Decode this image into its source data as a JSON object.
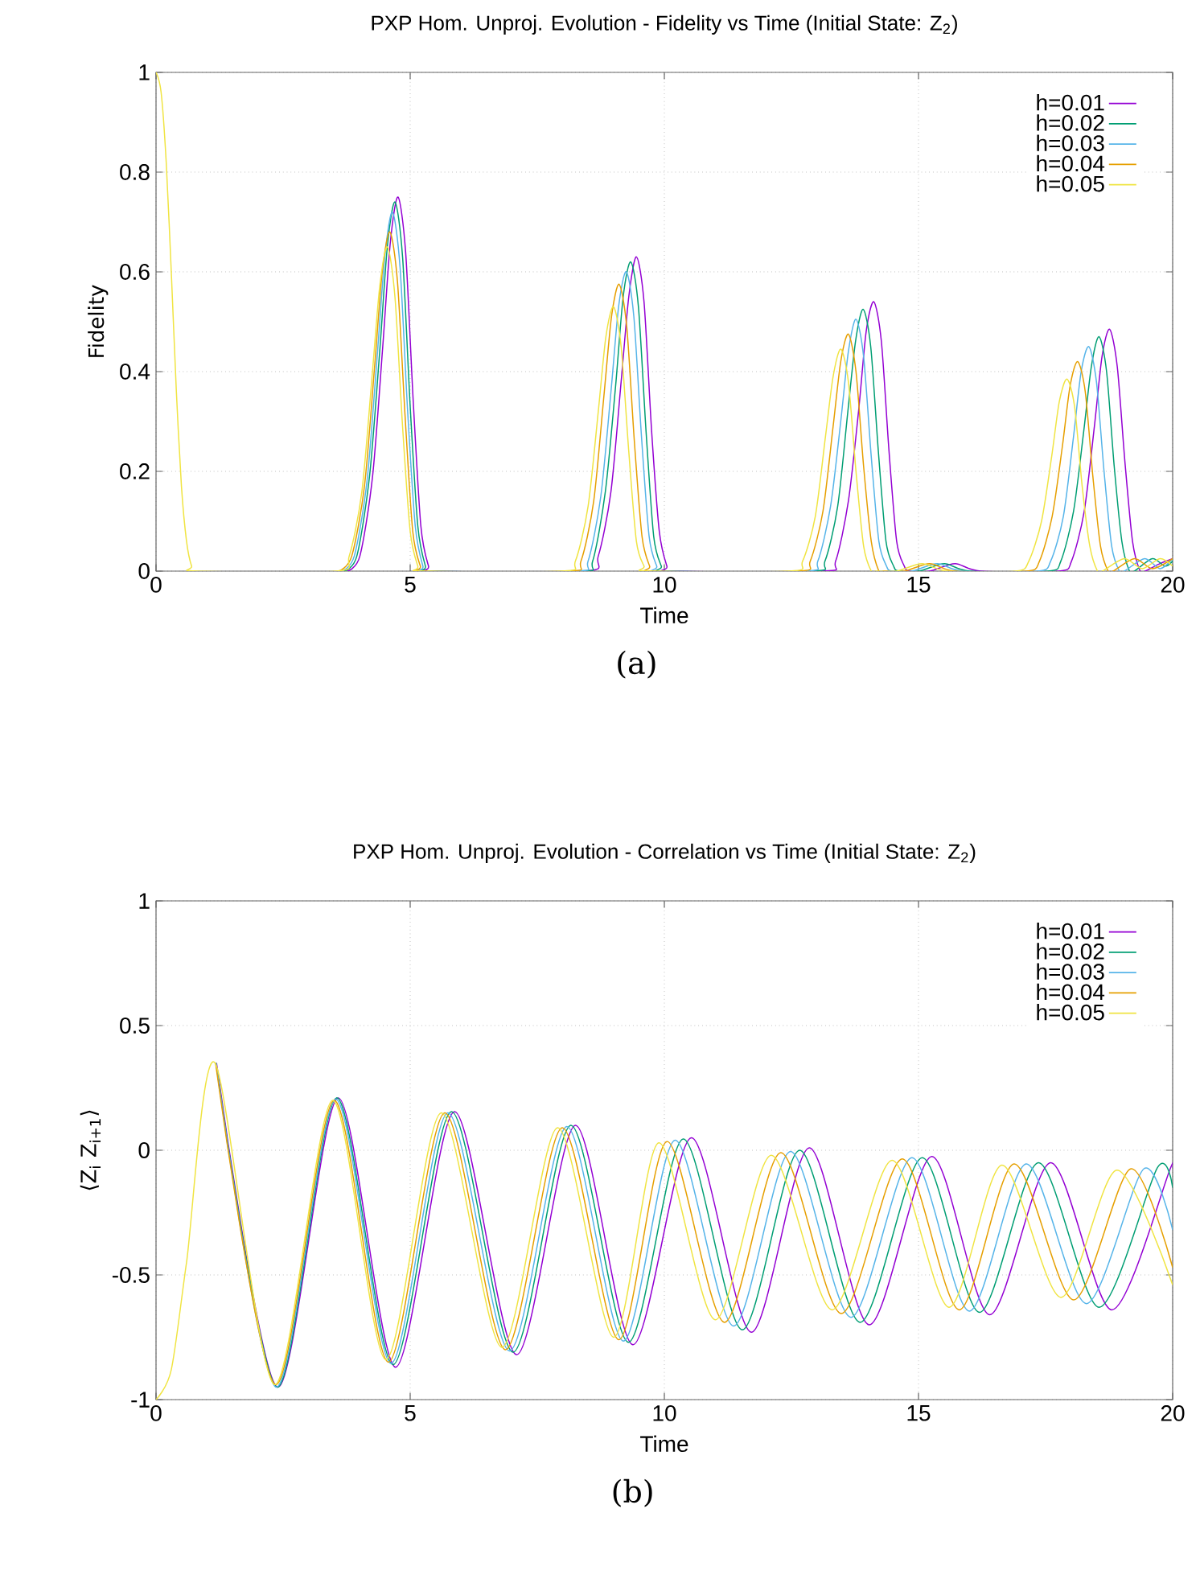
{
  "chart_data": [
    {
      "type": "line",
      "title": "PXP Hom. Unproj. Evolution - Fidelity vs Time (Initial State: Z$_{2}$)",
      "xlabel": "Time",
      "ylabel": "Fidelity",
      "annotations": [
        "(a)"
      ],
      "xlim": [
        0,
        20
      ],
      "ylim": [
        0,
        1
      ],
      "xticks": [
        0,
        5,
        10,
        15,
        20
      ],
      "yticks": [
        0,
        0.2,
        0.4,
        0.6,
        0.8,
        1
      ],
      "grid": true,
      "legend": "top right",
      "series": [
        {
          "name": "h=0.01",
          "color": "#9400d3",
          "x": [
            3.76,
            4.01,
            4.26,
            4.46,
            4.61,
            4.76,
            4.91,
            5.06,
            5.21,
            5.36,
            5.46,
            8.45,
            8.7,
            8.95,
            9.15,
            9.3,
            9.45,
            9.6,
            9.75,
            9.9,
            10.05,
            10.15,
            13.12,
            13.37,
            13.62,
            13.82,
            13.97,
            14.12,
            14.27,
            14.42,
            14.57,
            14.72,
            14.82,
            15.22,
            15.72,
            16.22,
            17.76,
            18.01,
            18.26,
            18.46,
            18.61,
            18.76,
            18.91,
            19.06,
            19.21,
            19.36,
            19.46,
            19.75,
            20
          ],
          "values": [
            0,
            0.03,
            0.19,
            0.45,
            0.66,
            0.75,
            0.64,
            0.34,
            0.09,
            0.01,
            0,
            0,
            0.03,
            0.16,
            0.38,
            0.55,
            0.63,
            0.54,
            0.28,
            0.08,
            0.01,
            0,
            0,
            0.02,
            0.14,
            0.32,
            0.48,
            0.54,
            0.46,
            0.24,
            0.06,
            0.01,
            0,
            0,
            0.015,
            0,
            0,
            0.02,
            0.12,
            0.29,
            0.43,
            0.485,
            0.41,
            0.22,
            0.06,
            0,
            0,
            0.015,
            0.025
          ]
        },
        {
          "name": "h=0.02",
          "color": "#009e73",
          "x": [
            3.7,
            3.95,
            4.2,
            4.4,
            4.55,
            4.7,
            4.85,
            5.0,
            5.15,
            5.3,
            5.4,
            8.34,
            8.59,
            8.84,
            9.04,
            9.19,
            9.34,
            9.49,
            9.64,
            9.79,
            9.94,
            10.04,
            12.91,
            13.16,
            13.41,
            13.61,
            13.76,
            13.91,
            14.06,
            14.21,
            14.36,
            14.51,
            14.61,
            15.01,
            15.51,
            16.01,
            17.55,
            17.8,
            18.05,
            18.25,
            18.4,
            18.55,
            18.7,
            18.85,
            19.0,
            19.15,
            19.25,
            19.6,
            19.85,
            20
          ],
          "values": [
            0,
            0.03,
            0.19,
            0.44,
            0.65,
            0.74,
            0.63,
            0.33,
            0.09,
            0.01,
            0,
            0,
            0.02,
            0.16,
            0.37,
            0.55,
            0.62,
            0.53,
            0.28,
            0.07,
            0.01,
            0,
            0,
            0.02,
            0.13,
            0.32,
            0.46,
            0.525,
            0.45,
            0.24,
            0.06,
            0.01,
            0,
            0,
            0.015,
            0,
            0,
            0.02,
            0.12,
            0.28,
            0.41,
            0.47,
            0.4,
            0.21,
            0.06,
            0,
            0,
            0.025,
            0.01,
            0.02
          ]
        },
        {
          "name": "h=0.03",
          "color": "#56b4e9",
          "x": [
            3.65,
            3.9,
            4.15,
            4.35,
            4.5,
            4.65,
            4.8,
            4.95,
            5.1,
            5.25,
            5.35,
            8.25,
            8.5,
            8.75,
            8.95,
            9.1,
            9.25,
            9.4,
            9.55,
            9.7,
            9.85,
            9.95,
            12.77,
            13.02,
            13.27,
            13.47,
            13.62,
            13.77,
            13.92,
            14.07,
            14.22,
            14.37,
            14.47,
            14.87,
            15.37,
            15.87,
            17.35,
            17.6,
            17.85,
            18.05,
            18.2,
            18.35,
            18.5,
            18.65,
            18.8,
            18.95,
            19.05,
            19.45,
            19.75,
            20
          ],
          "values": [
            0,
            0.03,
            0.18,
            0.43,
            0.63,
            0.72,
            0.61,
            0.32,
            0.09,
            0.01,
            0,
            0,
            0.02,
            0.15,
            0.36,
            0.53,
            0.6,
            0.51,
            0.27,
            0.07,
            0.01,
            0,
            0,
            0.02,
            0.13,
            0.3,
            0.44,
            0.505,
            0.43,
            0.23,
            0.06,
            0.01,
            0,
            0,
            0.015,
            0,
            0,
            0.02,
            0.11,
            0.27,
            0.4,
            0.45,
            0.38,
            0.2,
            0.05,
            0,
            0,
            0.025,
            0.005,
            0.025
          ]
        },
        {
          "name": "h=0.04",
          "color": "#e69f00",
          "x": [
            3.6,
            3.85,
            4.1,
            4.3,
            4.45,
            4.6,
            4.75,
            4.9,
            5.05,
            5.2,
            5.3,
            8.11,
            8.36,
            8.61,
            8.81,
            8.96,
            9.11,
            9.26,
            9.41,
            9.56,
            9.71,
            9.81,
            12.62,
            12.87,
            13.12,
            13.32,
            13.47,
            13.62,
            13.77,
            13.92,
            14.07,
            14.22,
            14.32,
            14.72,
            15.22,
            15.72,
            17.13,
            17.38,
            17.63,
            17.83,
            17.98,
            18.13,
            18.28,
            18.43,
            18.58,
            18.73,
            18.83,
            19.25,
            19.6,
            20
          ],
          "values": [
            0,
            0.03,
            0.17,
            0.41,
            0.6,
            0.68,
            0.58,
            0.31,
            0.08,
            0.01,
            0,
            0,
            0.02,
            0.14,
            0.35,
            0.51,
            0.575,
            0.49,
            0.26,
            0.07,
            0.01,
            0,
            0,
            0.02,
            0.12,
            0.29,
            0.42,
            0.475,
            0.4,
            0.21,
            0.06,
            0,
            0,
            0,
            0.015,
            0,
            0,
            0.02,
            0.11,
            0.25,
            0.37,
            0.42,
            0.36,
            0.19,
            0.05,
            0,
            0,
            0.025,
            0.005,
            0.025
          ]
        },
        {
          "name": "h=0.05",
          "color": "#f0e442",
          "x": [
            0,
            0.1,
            0.2,
            0.3,
            0.4,
            0.5,
            0.6,
            0.7,
            0.8,
            3.55,
            3.8,
            4.05,
            4.25,
            4.4,
            4.55,
            4.7,
            4.85,
            5.0,
            5.15,
            5.25,
            8.0,
            8.25,
            8.5,
            8.7,
            8.85,
            9.0,
            9.15,
            9.3,
            9.45,
            9.6,
            9.7,
            12.47,
            12.72,
            12.97,
            13.17,
            13.32,
            13.47,
            13.62,
            13.77,
            13.92,
            14.07,
            14.17,
            14.57,
            15.07,
            15.57,
            16.92,
            17.17,
            17.42,
            17.62,
            17.77,
            17.92,
            18.07,
            18.22,
            18.37,
            18.52,
            18.62,
            19.05,
            19.4,
            19.75,
            20
          ],
          "values": [
            1,
            0.96,
            0.82,
            0.6,
            0.36,
            0.17,
            0.06,
            0.01,
            0,
            0,
            0.03,
            0.16,
            0.39,
            0.57,
            0.65,
            0.55,
            0.29,
            0.08,
            0.01,
            0,
            0,
            0.02,
            0.13,
            0.32,
            0.47,
            0.53,
            0.45,
            0.24,
            0.06,
            0.01,
            0,
            0,
            0.02,
            0.11,
            0.27,
            0.39,
            0.445,
            0.38,
            0.2,
            0.05,
            0,
            0,
            0,
            0.015,
            0,
            0,
            0.02,
            0.1,
            0.23,
            0.34,
            0.385,
            0.33,
            0.17,
            0.05,
            0,
            0,
            0.025,
            0.005,
            0.025,
            0.01
          ]
        }
      ]
    },
    {
      "type": "line",
      "title": "PXP Hom. Unproj. Evolution - Correlation vs Time (Initial State: Z$_{2}$)",
      "xlabel": "Time",
      "ylabel": "⟨Z$_{i}$ Z$_{i+1}$⟩",
      "annotations": [
        "(b)"
      ],
      "xlim": [
        0,
        20
      ],
      "ylim": [
        -1,
        1
      ],
      "xticks": [
        0,
        5,
        10,
        15,
        20
      ],
      "yticks": [
        -1,
        -0.5,
        0,
        0.5,
        1
      ],
      "grid": true,
      "legend": "top right",
      "series": [
        {
          "name": "h=0.01",
          "color": "#9400d3",
          "x": [
            1.19,
            2.39,
            3.58,
            4.71,
            5.87,
            7.09,
            8.25,
            9.38,
            10.53,
            11.71,
            12.85,
            14.03,
            15.26,
            16.4,
            17.6,
            18.8,
            19.96,
            20
          ],
          "values": [
            0.35,
            -0.95,
            0.21,
            -0.87,
            0.155,
            -0.82,
            0.1,
            -0.78,
            0.05,
            -0.73,
            0.01,
            -0.7,
            -0.025,
            -0.66,
            -0.05,
            -0.64,
            -0.07,
            -0.07
          ]
        },
        {
          "name": "h=0.02",
          "color": "#009e73",
          "x": [
            1.18,
            2.38,
            3.55,
            4.66,
            5.81,
            7.02,
            8.16,
            9.29,
            10.37,
            11.53,
            12.66,
            13.85,
            15.07,
            16.2,
            17.36,
            18.55,
            19.7,
            20
          ],
          "values": [
            0.35,
            -0.95,
            0.21,
            -0.86,
            0.155,
            -0.81,
            0.1,
            -0.77,
            0.045,
            -0.72,
            0,
            -0.69,
            -0.03,
            -0.65,
            -0.05,
            -0.63,
            -0.07,
            -0.15
          ]
        },
        {
          "name": "h=0.03",
          "color": "#56b4e9",
          "x": [
            1.18,
            2.36,
            3.53,
            4.62,
            5.74,
            6.95,
            8.08,
            9.19,
            10.21,
            11.36,
            12.48,
            13.67,
            14.87,
            16.0,
            17.12,
            18.3,
            19.43,
            20
          ],
          "values": [
            0.35,
            -0.95,
            0.205,
            -0.855,
            0.15,
            -0.805,
            0.095,
            -0.765,
            0.04,
            -0.705,
            -0.005,
            -0.67,
            -0.03,
            -0.645,
            -0.055,
            -0.615,
            -0.075,
            -0.32
          ]
        },
        {
          "name": "h=0.04",
          "color": "#e69f00",
          "x": [
            1.17,
            2.35,
            3.5,
            4.57,
            5.68,
            6.87,
            7.99,
            9.1,
            10.05,
            11.18,
            12.29,
            13.48,
            14.68,
            15.8,
            16.88,
            18.05,
            19.17,
            20
          ],
          "values": [
            0.35,
            -0.94,
            0.2,
            -0.85,
            0.15,
            -0.8,
            0.09,
            -0.76,
            0.035,
            -0.69,
            -0.01,
            -0.655,
            -0.035,
            -0.64,
            -0.055,
            -0.6,
            -0.075,
            -0.47
          ]
        },
        {
          "name": "h=0.05",
          "color": "#f0e442",
          "x": [
            0,
            0.3,
            0.6,
            1.16,
            2.33,
            3.47,
            4.52,
            5.61,
            6.8,
            7.9,
            9.0,
            9.89,
            11.0,
            12.1,
            13.3,
            14.48,
            15.6,
            16.64,
            17.8,
            18.9,
            20
          ],
          "values": [
            -1,
            -0.88,
            -0.45,
            0.35,
            -0.94,
            0.2,
            -0.84,
            0.15,
            -0.79,
            0.09,
            -0.75,
            0.03,
            -0.68,
            -0.02,
            -0.64,
            -0.04,
            -0.63,
            -0.06,
            -0.59,
            -0.08,
            -0.54
          ]
        }
      ]
    }
  ]
}
